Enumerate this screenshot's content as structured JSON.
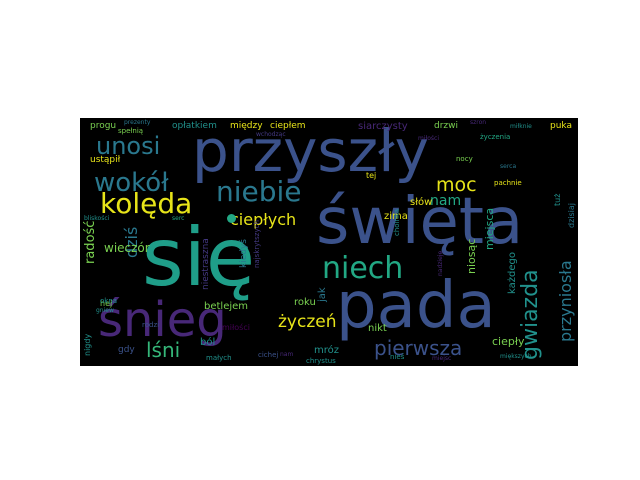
{
  "palette": {
    "background": "#000000",
    "yellow": "#e7e419",
    "lightgreen": "#7ad151",
    "green": "#35b779",
    "teal": "#22a884",
    "tealblue": "#1f9e89",
    "cyan": "#21918c",
    "blue": "#2a788e",
    "steel": "#3b528b",
    "purple": "#443983",
    "violet": "#482878",
    "dark": "#440154"
  },
  "words": [
    {
      "text": "się",
      "color": "#1f9e89"
    },
    {
      "text": "pada",
      "color": "#3b528b"
    },
    {
      "text": "święta",
      "color": "#3b528b"
    },
    {
      "text": "przyszły",
      "color": "#3b528b"
    },
    {
      "text": "śnieg",
      "color": "#482878"
    },
    {
      "text": "niech",
      "color": "#22a884"
    },
    {
      "text": "niebie",
      "color": "#2a788e"
    },
    {
      "text": "kolęda",
      "color": "#e7e419"
    },
    {
      "text": "wokół",
      "color": "#2a788e"
    },
    {
      "text": "unosi",
      "color": "#2a788e"
    },
    {
      "text": "moc",
      "color": "#e7e419"
    },
    {
      "text": "ciepłych",
      "color": "#e7e419"
    },
    {
      "text": "gwiazda",
      "color": "#21918c"
    },
    {
      "text": "pierwsza",
      "color": "#3b528b"
    },
    {
      "text": "przyniosła",
      "color": "#2a788e"
    },
    {
      "text": "lśni",
      "color": "#35b779"
    },
    {
      "text": "życzeń",
      "color": "#e7e419"
    },
    {
      "text": "dziś",
      "color": "#2a788e"
    },
    {
      "text": "radość",
      "color": "#7ad151"
    },
    {
      "text": "wieczór",
      "color": "#7ad151"
    },
    {
      "text": "nam",
      "color": "#22a884"
    },
    {
      "text": "słów",
      "color": "#e7e419"
    },
    {
      "text": "zima",
      "color": "#e7e419"
    },
    {
      "text": "miejsca",
      "color": "#22a884"
    },
    {
      "text": "niosąc",
      "color": "#7ad151"
    },
    {
      "text": "każdego",
      "color": "#21918c"
    },
    {
      "text": "ciepły",
      "color": "#7ad151"
    },
    {
      "text": "nikt",
      "color": "#7ad151"
    },
    {
      "text": "roku",
      "color": "#7ad151"
    },
    {
      "text": "jak",
      "color": "#2a788e"
    },
    {
      "text": "mróz",
      "color": "#21918c"
    },
    {
      "text": "ból",
      "color": "#21918c"
    },
    {
      "text": "betlejem",
      "color": "#7ad151"
    },
    {
      "text": "niestraszna",
      "color": "#443983"
    },
    {
      "text": "kiedyś",
      "color": "#2a788e"
    },
    {
      "text": "miłości",
      "color": "#440154"
    },
    {
      "text": "najskrytszych",
      "color": "#443983"
    },
    {
      "text": "gdy",
      "color": "#3b528b"
    },
    {
      "text": "nigdy",
      "color": "#21918c"
    },
    {
      "text": "hej",
      "color": "#7ad151"
    },
    {
      "text": "okna",
      "color": "#21918c"
    },
    {
      "text": "gniew",
      "color": "#21918c"
    },
    {
      "text": "rodzi",
      "color": "#3b528b"
    },
    {
      "text": "małych",
      "color": "#21918c"
    },
    {
      "text": "cichej",
      "color": "#3b528b"
    },
    {
      "text": "nam",
      "color": "#482878"
    },
    {
      "text": "chrystus",
      "color": "#21918c"
    },
    {
      "text": "nieś",
      "color": "#21918c"
    },
    {
      "text": "miejsc",
      "color": "#482878"
    },
    {
      "text": "miększych",
      "color": "#21918c"
    },
    {
      "text": "bliskości",
      "color": "#21918c"
    },
    {
      "text": "serc",
      "color": "#22a884"
    },
    {
      "text": "choinka",
      "color": "#21918c"
    },
    {
      "text": "nadzieję",
      "color": "#482878"
    },
    {
      "text": "tej",
      "color": "#e7e419"
    },
    {
      "text": "nocy",
      "color": "#7ad151"
    },
    {
      "text": "pachnie",
      "color": "#e7e419"
    },
    {
      "text": "serca",
      "color": "#2a788e"
    },
    {
      "text": "tuż",
      "color": "#21918c"
    },
    {
      "text": "dzisiaj",
      "color": "#2a788e"
    },
    {
      "text": "życzenia",
      "color": "#22a884"
    },
    {
      "text": "miłości",
      "color": "#482878"
    },
    {
      "text": "drzwi",
      "color": "#7ad151"
    },
    {
      "text": "puka",
      "color": "#e7e419"
    },
    {
      "text": "miłknie",
      "color": "#21918c"
    },
    {
      "text": "szron",
      "color": "#482878"
    },
    {
      "text": "siarczysty",
      "color": "#482878"
    },
    {
      "text": "między",
      "color": "#e7e419"
    },
    {
      "text": "ciepłem",
      "color": "#e7e419"
    },
    {
      "text": "opłatkiem",
      "color": "#21918c"
    },
    {
      "text": "prezenty",
      "color": "#2a788e"
    },
    {
      "text": "progu",
      "color": "#7ad151"
    },
    {
      "text": "spełnią",
      "color": "#7ad151"
    },
    {
      "text": "ustąpił",
      "color": "#e7e419"
    },
    {
      "text": "wchodząc",
      "color": "#443983"
    }
  ]
}
